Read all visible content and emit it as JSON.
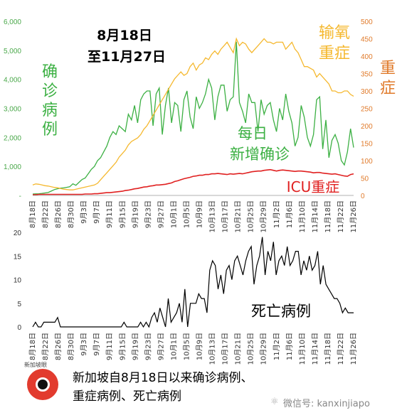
{
  "chart_data": [
    {
      "type": "line",
      "title": "8月18日 至11月27日",
      "title_lines": [
        "8月18日",
        "至11月27日"
      ],
      "left_axis": {
        "label_chars": [
          "确",
          "诊",
          "病",
          "例"
        ],
        "ticks": [
          "-",
          "1,000",
          "2,000",
          "3,000",
          "4,000",
          "5,000",
          "6,000"
        ],
        "ylim": [
          0,
          6000
        ],
        "tick_values": [
          0,
          1000,
          2000,
          3000,
          4000,
          5000,
          6000
        ]
      },
      "right_axis": {
        "label_chars": [
          "重",
          "症"
        ],
        "ticks": [
          "0",
          "50",
          "100",
          "150",
          "200",
          "250",
          "300",
          "350",
          "400",
          "450",
          "500"
        ],
        "ylim": [
          0,
          500
        ]
      },
      "series_labels": {
        "green": [
          "每日",
          "新增确诊"
        ],
        "orange": [
          "输氧",
          "重症"
        ],
        "red": "ICU重症"
      },
      "colors": {
        "green": "#3cb043",
        "orange": "#f5b82e",
        "red": "#e02020",
        "axis_green": "#4aa84a",
        "axis_orange": "#e07a2a"
      },
      "x_labels": [
        "8月18日",
        "8月22日",
        "8月26日",
        "8月30日",
        "9月3日",
        "9月7日",
        "9月11日",
        "9月15日",
        "9月19日",
        "9月23日",
        "9月27日",
        "10月1日",
        "10月5日",
        "10月9日",
        "10月13日",
        "10月17日",
        "10月21日",
        "10月25日",
        "10月29日",
        "11月2日",
        "11月6日",
        "11月10日",
        "11月14日",
        "11月18日",
        "11月22日",
        "11月26日"
      ],
      "series": [
        {
          "axis": "left",
          "color": "green",
          "values": [
            50,
            55,
            60,
            70,
            85,
            100,
            150,
            200,
            230,
            250,
            260,
            280,
            300,
            400,
            350,
            450,
            550,
            600,
            750,
            900,
            1000,
            1200,
            1300,
            1500,
            1700,
            2000,
            2200,
            2100,
            2400,
            2300,
            2200,
            2800,
            2600,
            3100,
            2500,
            3300,
            3500,
            3600,
            3600,
            2400,
            3500,
            3700,
            2100,
            3100,
            3700,
            2500,
            3200,
            3100,
            2200,
            3300,
            3600,
            2700,
            2300,
            3400,
            3000,
            3200,
            3500,
            4000,
            3700,
            2600,
            3400,
            3800,
            3800,
            2900,
            3300,
            3400,
            5300,
            3200,
            2900,
            2500,
            3500,
            3200,
            3200,
            2200,
            3300,
            2800,
            3100,
            3200,
            2600,
            2200,
            3000,
            2600,
            3500,
            2900,
            2500,
            1700,
            2000,
            3100,
            2700,
            2000,
            1700,
            2100,
            3300,
            3400,
            1600,
            2600,
            1300,
            1900,
            2100,
            1800,
            1200,
            1050,
            1500,
            2300,
            1650
          ]
        },
        {
          "axis": "right",
          "color": "orange",
          "values": [
            30,
            33,
            32,
            30,
            28,
            27,
            25,
            23,
            22,
            20,
            18,
            17,
            16,
            16,
            18,
            20,
            22,
            24,
            26,
            28,
            30,
            35,
            45,
            55,
            65,
            75,
            85,
            95,
            110,
            120,
            130,
            145,
            155,
            160,
            165,
            175,
            190,
            200,
            215,
            230,
            245,
            260,
            275,
            290,
            305,
            320,
            335,
            345,
            355,
            345,
            350,
            370,
            380,
            360,
            375,
            380,
            395,
            390,
            405,
            415,
            405,
            420,
            430,
            440,
            425,
            410,
            450,
            430,
            440,
            435,
            420,
            410,
            420,
            430,
            440,
            450,
            440,
            440,
            435,
            440,
            440,
            440,
            420,
            430,
            440,
            420,
            410,
            390,
            370,
            370,
            365,
            360,
            340,
            350,
            340,
            330,
            320,
            300,
            300,
            295,
            295,
            300,
            300,
            290,
            285
          ]
        },
        {
          "axis": "right",
          "color": "red",
          "values": [
            2,
            2,
            3,
            3,
            3,
            3,
            3,
            3,
            3,
            3,
            3,
            3,
            3,
            3,
            3,
            3,
            3,
            4,
            4,
            4,
            5,
            5,
            6,
            7,
            8,
            8,
            9,
            10,
            11,
            12,
            14,
            15,
            17,
            19,
            20,
            22,
            24,
            25,
            27,
            28,
            30,
            30,
            31,
            32,
            34,
            36,
            40,
            42,
            45,
            48,
            50,
            52,
            55,
            56,
            58,
            58,
            60,
            60,
            62,
            62,
            63,
            62,
            61,
            60,
            62,
            61,
            62,
            63,
            62,
            64,
            66,
            68,
            69,
            70,
            70,
            72,
            73,
            74,
            72,
            70,
            72,
            73,
            72,
            71,
            70,
            69,
            70,
            70,
            69,
            68,
            67,
            65,
            66,
            66,
            64,
            63,
            62,
            61,
            62,
            60,
            58,
            56,
            55,
            60,
            62
          ]
        }
      ]
    },
    {
      "type": "line",
      "y_ticks": [
        "0",
        "5",
        "10",
        "15",
        "20"
      ],
      "ylim": [
        0,
        20
      ],
      "label": "死亡病例",
      "color": "#000000",
      "x_labels": [
        "8月18日",
        "8月22日",
        "8月26日",
        "8月30日",
        "9月3日",
        "9月7日",
        "9月11日",
        "9月15日",
        "9月19日",
        "9月23日",
        "9月27日",
        "10月1日",
        "10月5日",
        "10月9日",
        "10月13日",
        "10月17日",
        "10月21日",
        "10月25日",
        "10月29日",
        "11月2日",
        "11月6日",
        "11月10日",
        "11月14日",
        "11月18日",
        "11月22日",
        "11月26日"
      ],
      "values": [
        0,
        1,
        0,
        0,
        1,
        1,
        1,
        1,
        1,
        2,
        0,
        0,
        0,
        0,
        0,
        0,
        0,
        0,
        0,
        0,
        0,
        0,
        0,
        0,
        0,
        0,
        0,
        0,
        0,
        0,
        0,
        0,
        0,
        1,
        0,
        0,
        0,
        0,
        0,
        1,
        0,
        1,
        0,
        2,
        3,
        1,
        4,
        2,
        0,
        6,
        1,
        2,
        3,
        5,
        1,
        8,
        0,
        5,
        5,
        5,
        7,
        6,
        6,
        3,
        12,
        14,
        13,
        8,
        11,
        7,
        12,
        13,
        10,
        14,
        15,
        13,
        11,
        14,
        16,
        17,
        9,
        13,
        15,
        19,
        11,
        16,
        14,
        18,
        11,
        14,
        15,
        13,
        17,
        13,
        14,
        16,
        16,
        11,
        14,
        12,
        15,
        12,
        13,
        16,
        9,
        13,
        9,
        8,
        7,
        6,
        6,
        5,
        3,
        4,
        3,
        3,
        3
      ]
    }
  ],
  "footer": {
    "logo_text": "新加坡眼",
    "lines": [
      "新加坡自8月18日以来确诊病例、",
      "重症病例、死亡病例"
    ],
    "wechat": "微信号: kanxinjiapo"
  }
}
